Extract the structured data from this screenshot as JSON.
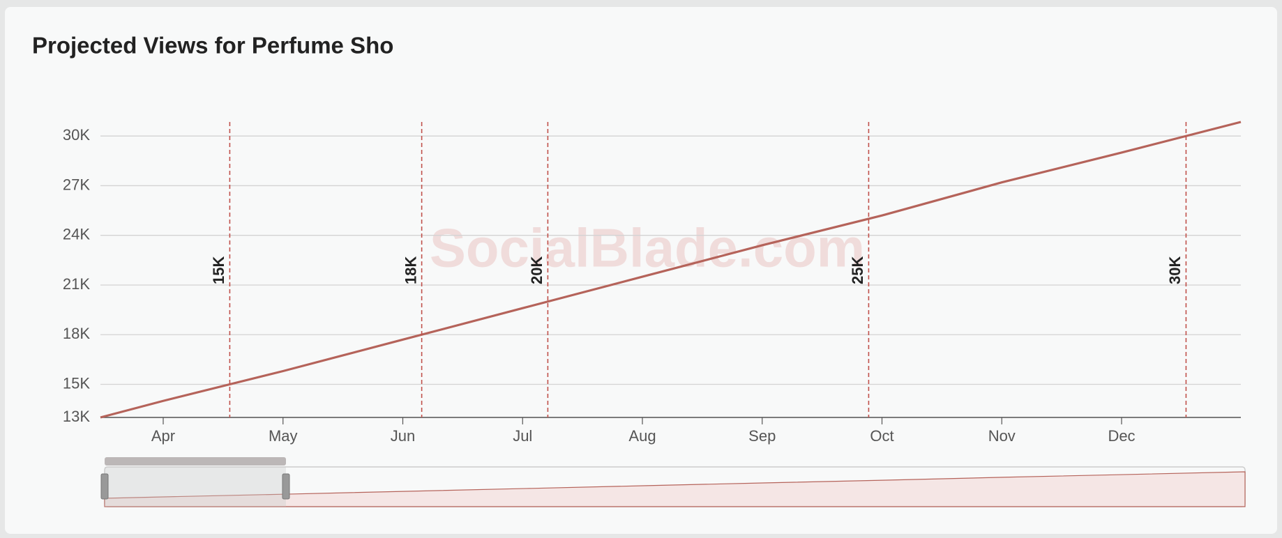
{
  "chart_data": {
    "type": "line",
    "title": "Projected Views for Perfume Sho",
    "watermark": "SocialBlade.com",
    "categories": [
      null,
      "Apr",
      "May",
      "Jun",
      "Jul",
      "Aug",
      "Sep",
      "Oct",
      "Nov",
      "Dec",
      null
    ],
    "values": [
      13000,
      14000,
      15800,
      17700,
      19600,
      21500,
      23400,
      25200,
      27200,
      29000,
      30850
    ],
    "color": "#b5635a",
    "ylim": [
      13000,
      30850
    ],
    "yticks": [
      {
        "value": 13000,
        "label": "13K"
      },
      {
        "value": 15000,
        "label": "15K"
      },
      {
        "value": 18000,
        "label": "18K"
      },
      {
        "value": 21000,
        "label": "21K"
      },
      {
        "value": 24000,
        "label": "24K"
      },
      {
        "value": 27000,
        "label": "27K"
      },
      {
        "value": 30000,
        "label": "30K"
      }
    ],
    "grid": true,
    "milestones": [
      {
        "value": 15000,
        "label": "15K"
      },
      {
        "value": 18000,
        "label": "18K"
      },
      {
        "value": 20000,
        "label": "20K"
      },
      {
        "value": 25000,
        "label": "25K"
      },
      {
        "value": 30000,
        "label": "30K"
      }
    ],
    "milestone_color": "#c0504a"
  }
}
